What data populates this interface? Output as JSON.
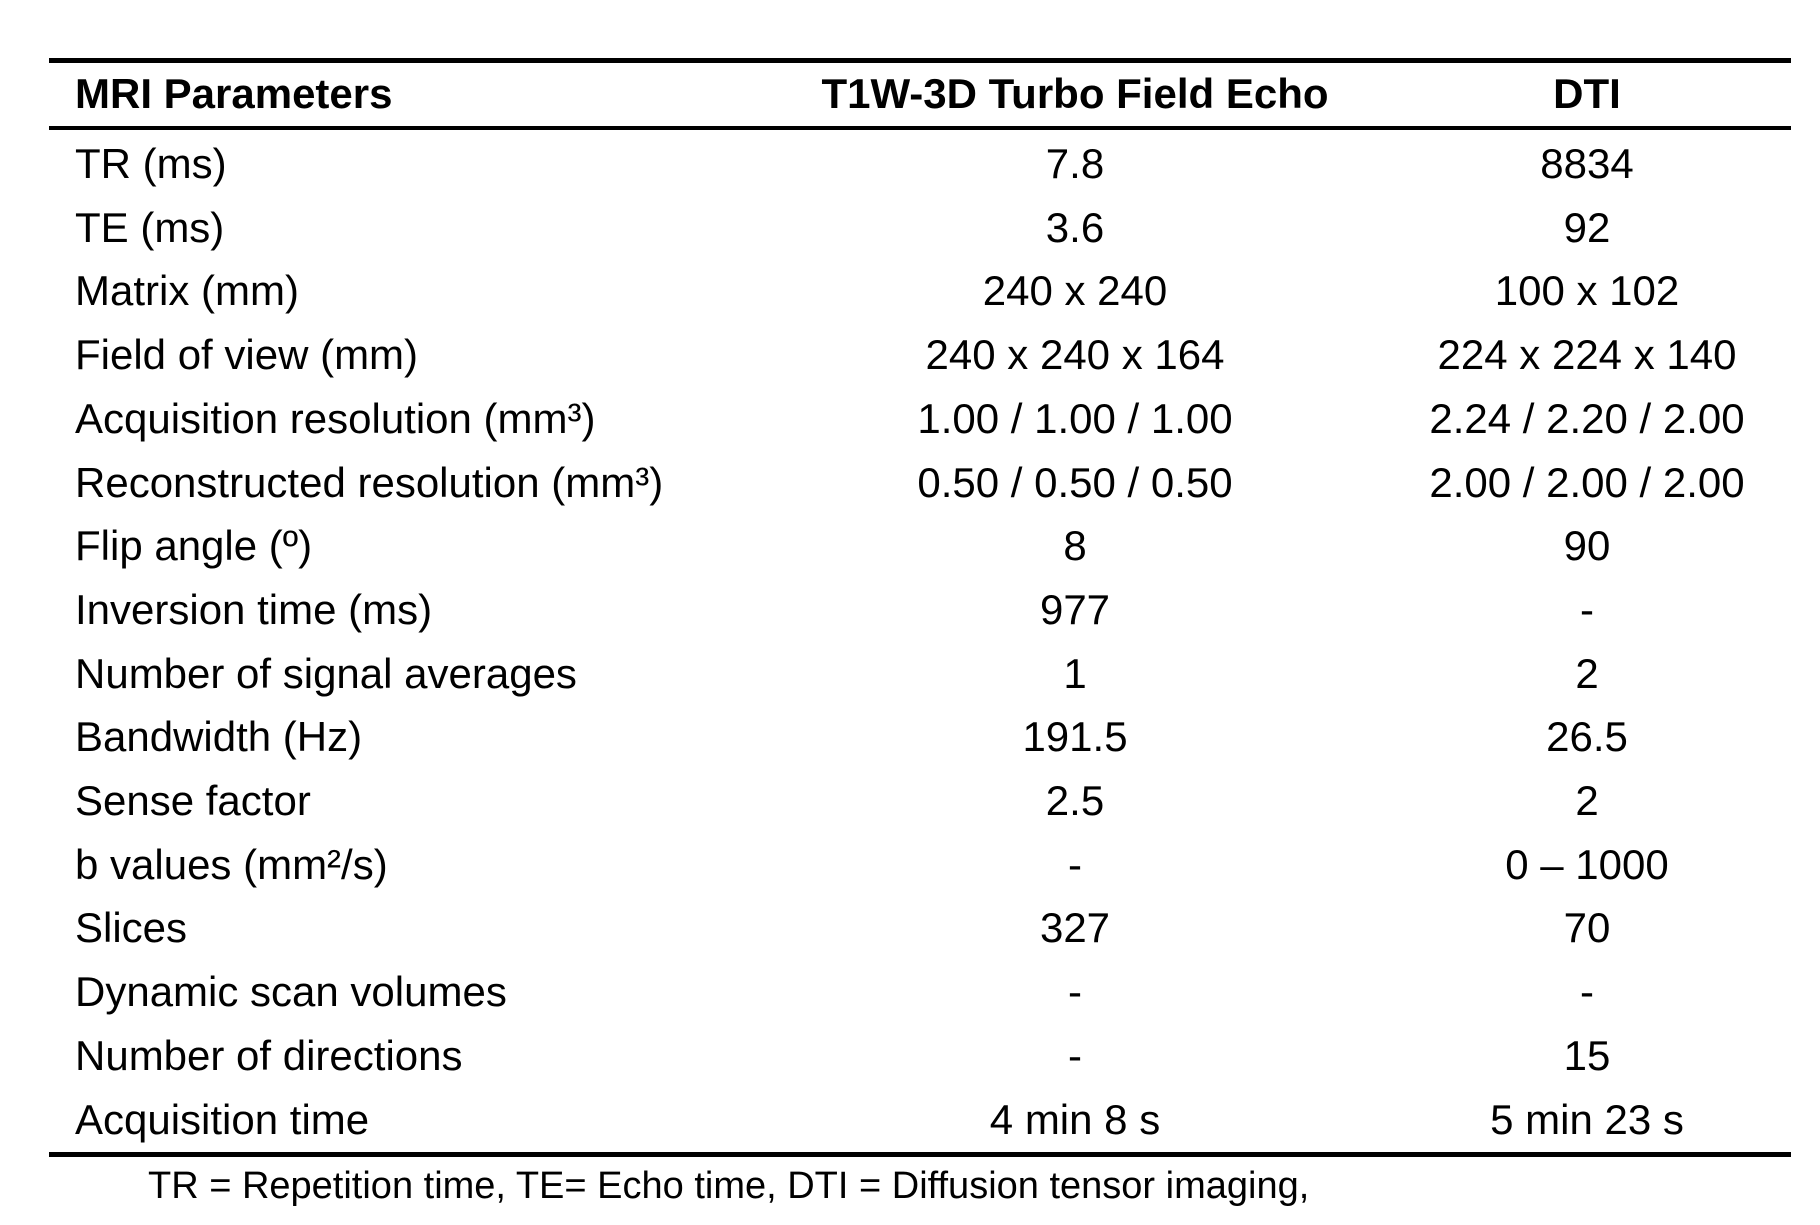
{
  "table": {
    "headers": [
      "MRI Parameters",
      "T1W-3D Turbo Field Echo",
      "DTI"
    ],
    "rows": [
      [
        "TR (ms)",
        "7.8",
        "8834"
      ],
      [
        "TE (ms)",
        "3.6",
        "92"
      ],
      [
        "Matrix (mm)",
        "240 x 240",
        "100 x 102"
      ],
      [
        "Field of view (mm)",
        "240 x 240 x 164",
        "224 x 224 x 140"
      ],
      [
        "Acquisition resolution (mm³)",
        "1.00 / 1.00 / 1.00",
        "2.24 / 2.20 / 2.00"
      ],
      [
        "Reconstructed resolution (mm³)",
        "0.50 / 0.50 / 0.50",
        "2.00 / 2.00 / 2.00"
      ],
      [
        "Flip angle (º)",
        "8",
        "90"
      ],
      [
        "Inversion time (ms)",
        "977",
        "-"
      ],
      [
        "Number of signal averages",
        "1",
        "2"
      ],
      [
        "Bandwidth (Hz)",
        "191.5",
        "26.5"
      ],
      [
        "Sense factor",
        "2.5",
        "2"
      ],
      [
        "b values (mm²/s)",
        "-",
        "0 – 1000"
      ],
      [
        "Slices",
        "327",
        "70"
      ],
      [
        "Dynamic scan volumes",
        "-",
        "-"
      ],
      [
        "Number of directions",
        "-",
        "15"
      ],
      [
        "Acquisition time",
        "4 min 8 s",
        "5 min 23 s"
      ]
    ],
    "footnote": "TR = Repetition time, TE= Echo time, DTI = Diffusion tensor imaging,"
  }
}
